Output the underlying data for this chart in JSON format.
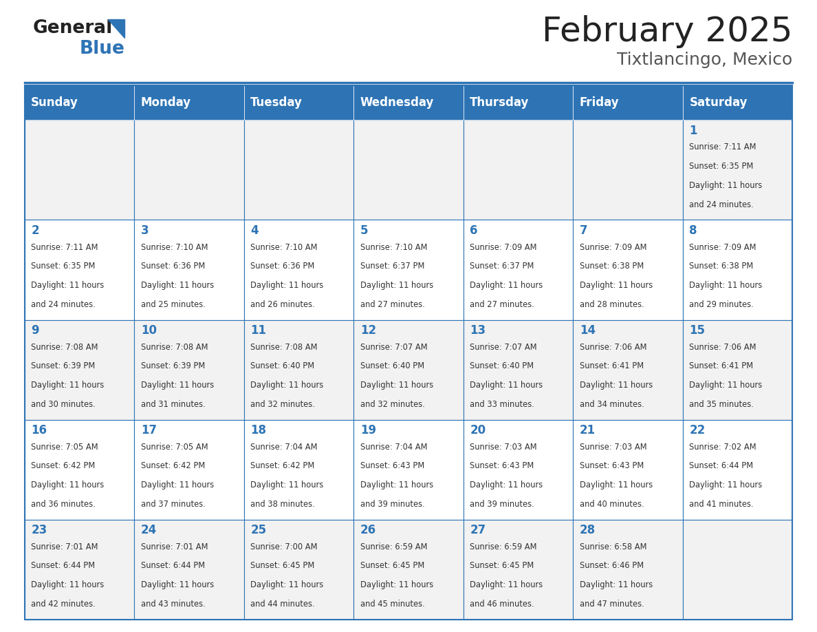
{
  "title": "February 2025",
  "subtitle": "Tixtlancingo, Mexico",
  "days_of_week": [
    "Sunday",
    "Monday",
    "Tuesday",
    "Wednesday",
    "Thursday",
    "Friday",
    "Saturday"
  ],
  "header_bg": "#2E74B5",
  "header_text": "#FFFFFF",
  "cell_bg_odd": "#F2F2F2",
  "cell_bg_even": "#FFFFFF",
  "cell_border": "#2E74B5",
  "day_number_color": "#2E74B5",
  "info_text_color": "#333333",
  "title_color": "#222222",
  "subtitle_color": "#555555",
  "logo_general_color": "#222222",
  "logo_blue_color": "#2E74B5",
  "calendar_data": [
    [
      null,
      null,
      null,
      null,
      null,
      null,
      {
        "day": 1,
        "sunrise": "7:11 AM",
        "sunset": "6:35 PM",
        "daylight": "11 hours and 24 minutes."
      }
    ],
    [
      {
        "day": 2,
        "sunrise": "7:11 AM",
        "sunset": "6:35 PM",
        "daylight": "11 hours and 24 minutes."
      },
      {
        "day": 3,
        "sunrise": "7:10 AM",
        "sunset": "6:36 PM",
        "daylight": "11 hours and 25 minutes."
      },
      {
        "day": 4,
        "sunrise": "7:10 AM",
        "sunset": "6:36 PM",
        "daylight": "11 hours and 26 minutes."
      },
      {
        "day": 5,
        "sunrise": "7:10 AM",
        "sunset": "6:37 PM",
        "daylight": "11 hours and 27 minutes."
      },
      {
        "day": 6,
        "sunrise": "7:09 AM",
        "sunset": "6:37 PM",
        "daylight": "11 hours and 27 minutes."
      },
      {
        "day": 7,
        "sunrise": "7:09 AM",
        "sunset": "6:38 PM",
        "daylight": "11 hours and 28 minutes."
      },
      {
        "day": 8,
        "sunrise": "7:09 AM",
        "sunset": "6:38 PM",
        "daylight": "11 hours and 29 minutes."
      }
    ],
    [
      {
        "day": 9,
        "sunrise": "7:08 AM",
        "sunset": "6:39 PM",
        "daylight": "11 hours and 30 minutes."
      },
      {
        "day": 10,
        "sunrise": "7:08 AM",
        "sunset": "6:39 PM",
        "daylight": "11 hours and 31 minutes."
      },
      {
        "day": 11,
        "sunrise": "7:08 AM",
        "sunset": "6:40 PM",
        "daylight": "11 hours and 32 minutes."
      },
      {
        "day": 12,
        "sunrise": "7:07 AM",
        "sunset": "6:40 PM",
        "daylight": "11 hours and 32 minutes."
      },
      {
        "day": 13,
        "sunrise": "7:07 AM",
        "sunset": "6:40 PM",
        "daylight": "11 hours and 33 minutes."
      },
      {
        "day": 14,
        "sunrise": "7:06 AM",
        "sunset": "6:41 PM",
        "daylight": "11 hours and 34 minutes."
      },
      {
        "day": 15,
        "sunrise": "7:06 AM",
        "sunset": "6:41 PM",
        "daylight": "11 hours and 35 minutes."
      }
    ],
    [
      {
        "day": 16,
        "sunrise": "7:05 AM",
        "sunset": "6:42 PM",
        "daylight": "11 hours and 36 minutes."
      },
      {
        "day": 17,
        "sunrise": "7:05 AM",
        "sunset": "6:42 PM",
        "daylight": "11 hours and 37 minutes."
      },
      {
        "day": 18,
        "sunrise": "7:04 AM",
        "sunset": "6:42 PM",
        "daylight": "11 hours and 38 minutes."
      },
      {
        "day": 19,
        "sunrise": "7:04 AM",
        "sunset": "6:43 PM",
        "daylight": "11 hours and 39 minutes."
      },
      {
        "day": 20,
        "sunrise": "7:03 AM",
        "sunset": "6:43 PM",
        "daylight": "11 hours and 39 minutes."
      },
      {
        "day": 21,
        "sunrise": "7:03 AM",
        "sunset": "6:43 PM",
        "daylight": "11 hours and 40 minutes."
      },
      {
        "day": 22,
        "sunrise": "7:02 AM",
        "sunset": "6:44 PM",
        "daylight": "11 hours and 41 minutes."
      }
    ],
    [
      {
        "day": 23,
        "sunrise": "7:01 AM",
        "sunset": "6:44 PM",
        "daylight": "11 hours and 42 minutes."
      },
      {
        "day": 24,
        "sunrise": "7:01 AM",
        "sunset": "6:44 PM",
        "daylight": "11 hours and 43 minutes."
      },
      {
        "day": 25,
        "sunrise": "7:00 AM",
        "sunset": "6:45 PM",
        "daylight": "11 hours and 44 minutes."
      },
      {
        "day": 26,
        "sunrise": "6:59 AM",
        "sunset": "6:45 PM",
        "daylight": "11 hours and 45 minutes."
      },
      {
        "day": 27,
        "sunrise": "6:59 AM",
        "sunset": "6:45 PM",
        "daylight": "11 hours and 46 minutes."
      },
      {
        "day": 28,
        "sunrise": "6:58 AM",
        "sunset": "6:46 PM",
        "daylight": "11 hours and 47 minutes."
      },
      null
    ]
  ]
}
